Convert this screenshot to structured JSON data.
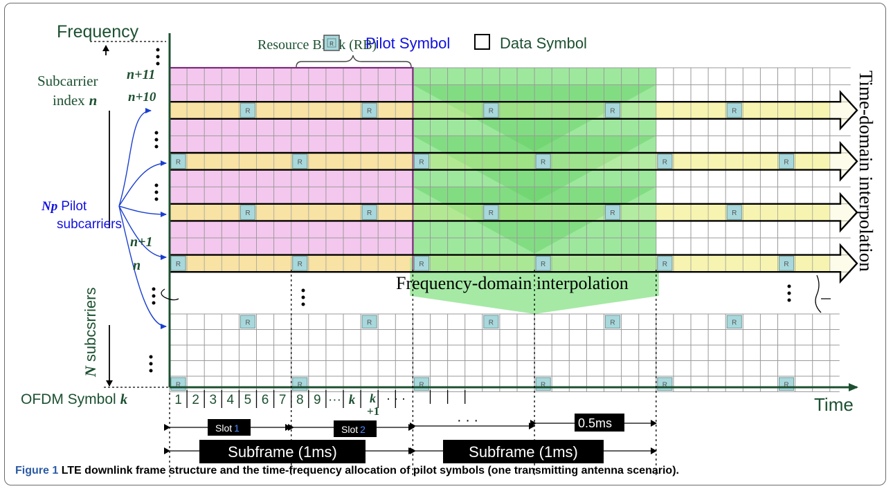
{
  "labels": {
    "frequency": "Frequency",
    "subcarrier_index_1": "Subcarrier",
    "subcarrier_index_2": "index",
    "subcarrier_index_n": "n",
    "n_plus_11": "n+11",
    "n_plus_10": "n+10",
    "n_plus_1": "n+1",
    "n_label": "n",
    "np": "Np",
    "pilot": "Pilot",
    "pilot_subcarriers": "subcarriers",
    "n_subcarriers_n": "N",
    "n_subcarriers_text": "subcsrriers",
    "ofdm_symbol": "OFDM Symbol",
    "ofdm_k": "k",
    "time": "Time",
    "resource_block": "Resource Block (RB)",
    "pilot_symbol": "Pilot Symbol",
    "data_symbol": "Data Symbol",
    "pilot_marker": "R",
    "time_domain": "Time-domain interpolation",
    "freq_domain": "Frequency-domain interpolation",
    "symbol_indices": [
      "1",
      "2",
      "3",
      "4",
      "5",
      "6",
      "7",
      "8",
      "9",
      "···",
      "k"
    ],
    "k_plus_1_top": "k",
    "k_plus_1_bottom": "+1",
    "symbol_dots": "· · ·",
    "slot1_prefix": "Slot",
    "slot1_num": "1",
    "slot2_prefix": "Slot",
    "slot2_num": "2",
    "middle_dots": "· · ·",
    "half_ms": "0.5ms",
    "subframe1": "Subframe (1ms)",
    "subframe2": "Subframe (1ms)"
  },
  "caption": {
    "label": "Figure 1",
    "text": "LTE downlink frame structure and the time-frequency allocation of pilot symbols (one transmitting antenna scenario)."
  },
  "colors": {
    "axis": "#1c5030",
    "pilot_text": "#1010e0",
    "rb_fill": "#f4c8ee",
    "rb_border": "#7a2a7a",
    "pilot_row": "#f8dca0",
    "pilot_row_right": "#f6f4b0",
    "green": "#7ee07e",
    "pilot_cell": "#a8d8dc",
    "grid": "#9a9a9a"
  }
}
